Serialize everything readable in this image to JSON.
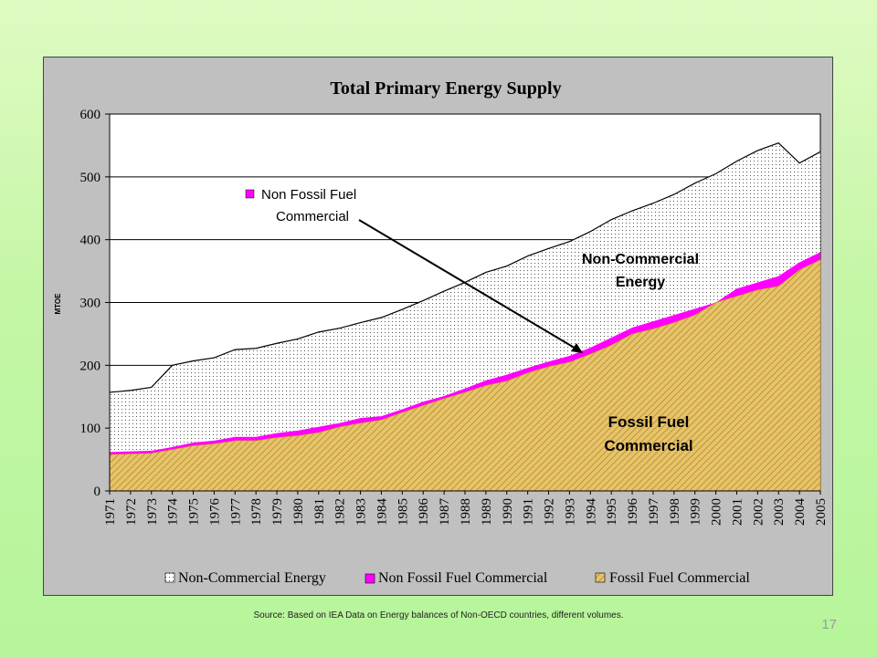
{
  "slide": {
    "source_note": "Source: Based on IEA Data on Energy balances of Non-OECD countries, different volumes.",
    "slide_number": "17"
  },
  "colors": {
    "background_top": "#dffbc2",
    "background_bottom": "#b6f59a",
    "plot_area": "#ffffff",
    "chart_frame": "#c0c0c0",
    "non_commercial": "#ffffff",
    "non_fossil": "#ff00ff",
    "fossil": "#e6c46a",
    "fossil_hatch": "#b8862b"
  },
  "chart_data": {
    "type": "area",
    "title": "Total Primary Energy Supply",
    "ylabel": "MTOE",
    "xlabel": "",
    "ylim": [
      0,
      600
    ],
    "yticks": [
      0,
      100,
      200,
      300,
      400,
      500,
      600
    ],
    "categories": [
      "1971",
      "1972",
      "1973",
      "1974",
      "1975",
      "1976",
      "1977",
      "1978",
      "1979",
      "1980",
      "1981",
      "1982",
      "1983",
      "1984",
      "1985",
      "1986",
      "1987",
      "1988",
      "1989",
      "1990",
      "1991",
      "1992",
      "1993",
      "1994",
      "1995",
      "1996",
      "1997",
      "1998",
      "1999",
      "2000",
      "2001",
      "2002",
      "2003",
      "2004",
      "2005"
    ],
    "stacked": true,
    "series": [
      {
        "name": "Fossil Fuel Commercial",
        "color": "#e6c46a",
        "values": [
          58,
          59,
          60,
          66,
          72,
          75,
          80,
          80,
          85,
          88,
          93,
          102,
          108,
          113,
          125,
          136,
          147,
          157,
          168,
          175,
          188,
          198,
          205,
          218,
          232,
          250,
          258,
          268,
          280,
          300,
          310,
          320,
          326,
          352,
          368
        ]
      },
      {
        "name": "Non Fossil Fuel Commercial",
        "color": "#ff00ff",
        "values": [
          4,
          4,
          4,
          4,
          5,
          5,
          6,
          6,
          7,
          8,
          9,
          6,
          8,
          6,
          5,
          6,
          4,
          6,
          8,
          10,
          8,
          8,
          10,
          10,
          12,
          10,
          12,
          12,
          10,
          0,
          12,
          12,
          16,
          12,
          12
        ]
      },
      {
        "name": "Non-Commercial Energy",
        "color": "#ffffff",
        "values": [
          95,
          97,
          101,
          130,
          130,
          132,
          139,
          141,
          143,
          146,
          151,
          151,
          152,
          157,
          159,
          161,
          167,
          169,
          172,
          173,
          178,
          180,
          182,
          185,
          188,
          186,
          188,
          192,
          200,
          205,
          203,
          210,
          212,
          158,
          160
        ]
      }
    ],
    "legend": {
      "position": "bottom",
      "entries": [
        "Non-Commercial Energy",
        "Non Fossil Fuel Commercial",
        "Fossil Fuel Commercial"
      ]
    },
    "annotations": {
      "non_fossil_callout": [
        "Non Fossil Fuel",
        "Commercial"
      ],
      "non_commercial_label": [
        "Non-Commercial",
        "Energy"
      ],
      "fossil_label": [
        "Fossil Fuel",
        "Commercial"
      ]
    },
    "grid": "horizontal"
  }
}
